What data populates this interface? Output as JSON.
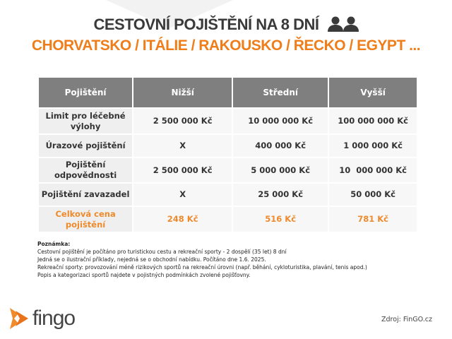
{
  "title": "CESTOVNÍ POJIŠTĚNÍ NA 8 DNÍ",
  "title_icon": "two-people-icon",
  "subtitle": "CHORVATSKO / ITÁLIE / RAKOUSKO / ŘECKO / EGYPT ...",
  "table": {
    "headers": [
      "Pojištění",
      "Nižší",
      "Střední",
      "Vyšší"
    ],
    "rows": [
      [
        "Limit pro léčebné výlohy",
        "2 500 000 Kč",
        "10 000 000 Kč",
        "100 000 000 Kč"
      ],
      [
        "Úrazové pojištění",
        "X",
        "400 000 Kč",
        "1 000 000 Kč"
      ],
      [
        "Pojištění odpovědnosti",
        "2 500 000 Kč",
        "5 000 000 Kč",
        "10  000 000 Kč"
      ],
      [
        "Pojištění zavazadel",
        "X",
        "25 000 Kč",
        "50 000 Kč"
      ],
      [
        "Celková cena pojištění",
        "248 Kč",
        "516 Kč",
        "781 Kč"
      ]
    ]
  },
  "note": {
    "heading": "Poznámka:",
    "lines": [
      "Cestovní pojištění je počítáno pro turistickou cestu a rekreační sporty - 2 dospělí (35 let) 8 dní",
      "Jedná se o ilustrační příklady, nejedná se o obchodní nabídku. Počítáno dne 1.6. 2025.",
      "Rekreační sporty: provozování méně rizikových sportů na rekreační úrovni (např. běhání, cykloturistika, plavání, tenis apod.)",
      "Popis a kategorizaci sportů najdete v pojistných podmínkách zvolené pojišťovny."
    ]
  },
  "logo": "fingo",
  "source": "Zdroj: FinGO.cz",
  "colors": {
    "accent": "#ee7d1a",
    "header_bg": "#7f7f7f",
    "title": "#3a3a3a"
  }
}
